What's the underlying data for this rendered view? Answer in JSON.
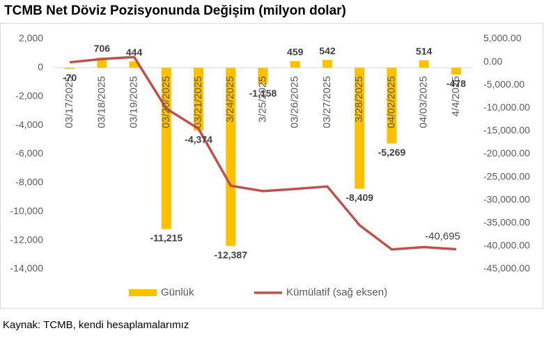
{
  "chart_data": {
    "type": "bar",
    "title": "TCMB Net Döviz Pozisyonunda Değişim (milyon dolar)",
    "source": "Kaynak: TCMB, kendi hesaplamalarımız",
    "categories": [
      "03/17/2025",
      "03/18/2025",
      "03/19/2025",
      "03/20/2025",
      "03/21/2025",
      "3/24/2025",
      "3/25/2025",
      "03/26/2025",
      "03/27/2025",
      "3/28/2025",
      "04/02/2025",
      "04/03/2025",
      "4/4/2025"
    ],
    "series": [
      {
        "name": "Günlük",
        "type": "bar",
        "color": "#FFC000",
        "values": [
          -70,
          706,
          444,
          -11215,
          -4374,
          -12387,
          -1158,
          459,
          542,
          -8409,
          -5269,
          514,
          -478
        ],
        "value_labels": [
          "-70",
          "706",
          "444",
          "-11,215",
          "-4,374",
          "-12,387",
          "-1,158",
          "459",
          "542",
          "-8,409",
          "-5,269",
          "514",
          "-478"
        ]
      },
      {
        "name": "Kümülatif (sağ eksen)",
        "type": "line",
        "axis": "y2",
        "color": "#C0504D",
        "values": [
          -70,
          636,
          1080,
          -10135,
          -14509,
          -26896,
          -28054,
          -27595,
          -27053,
          -35462,
          -40731,
          -40217,
          -40695
        ],
        "value_labels": [
          null,
          null,
          null,
          null,
          null,
          null,
          null,
          null,
          null,
          null,
          null,
          null,
          "-40,695"
        ]
      }
    ],
    "ylim": [
      -14000,
      2000
    ],
    "yticks": [
      {
        "value": 2000,
        "label": "2,000"
      },
      0,
      {
        "value": -2000,
        "label": "-2,000"
      },
      {
        "value": -4000,
        "label": "-4,000"
      },
      {
        "value": -6000,
        "label": "-6,000"
      },
      {
        "value": -8000,
        "label": "-8,000"
      },
      {
        "value": -10000,
        "label": "-10,000"
      },
      {
        "value": -12000,
        "label": "-12,000"
      },
      {
        "value": -14000,
        "label": "-14,000"
      }
    ],
    "y2lim": [
      -45000,
      5000
    ],
    "y2ticks": [
      {
        "value": 5000,
        "label": "5,000.00"
      },
      {
        "value": 0,
        "label": "0.00"
      },
      {
        "value": -5000,
        "label": "-5,000.00"
      },
      {
        "value": -10000,
        "label": "-10,000.00"
      },
      {
        "value": -15000,
        "label": "-15,000.00"
      },
      {
        "value": -20000,
        "label": "-20,000.00"
      },
      {
        "value": -25000,
        "label": "-25,000.00"
      },
      {
        "value": -30000,
        "label": "-30,000.00"
      },
      {
        "value": -35000,
        "label": "-35,000.00"
      },
      {
        "value": -40000,
        "label": "-40,000.00"
      },
      {
        "value": -45000,
        "label": "-45,000.00"
      }
    ],
    "grid": false,
    "legend": "bottom"
  }
}
